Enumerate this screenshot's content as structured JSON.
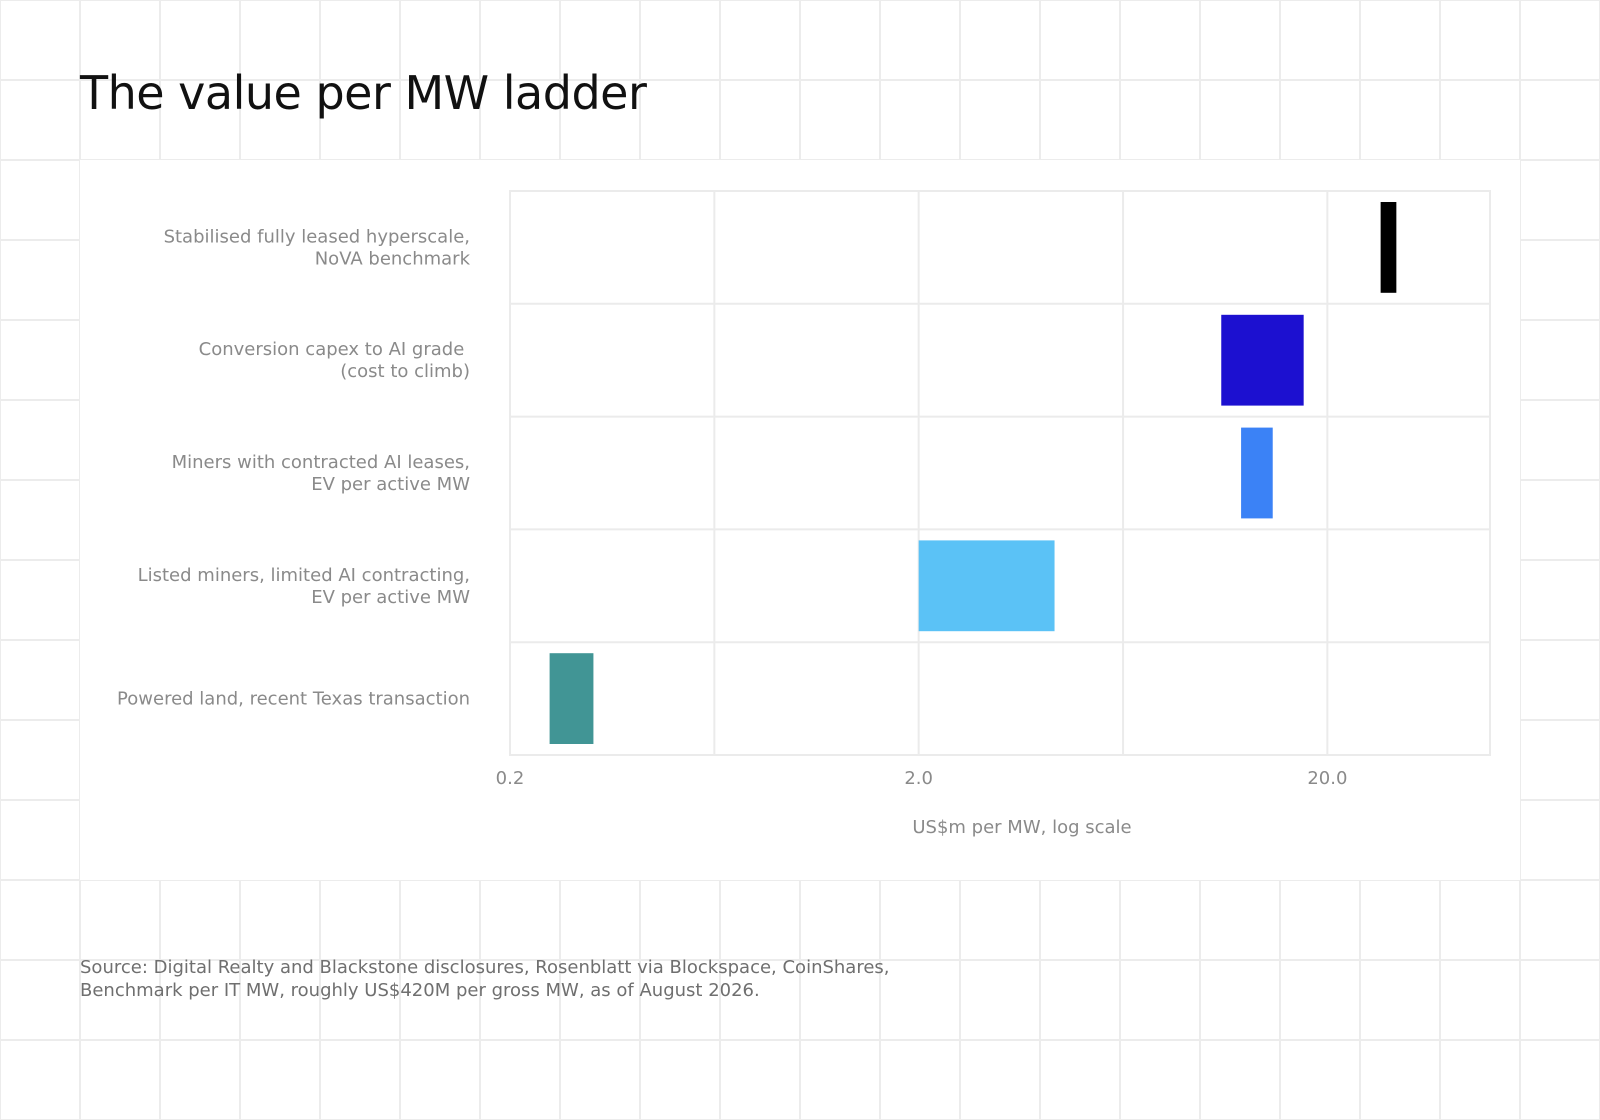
{
  "page": {
    "title": "The value per MW ladder",
    "source_note": "Source: Digital Realty and Blackstone disclosures, Rosenblatt via Blockspace, CoinShares, Benchmark per IT MW, roughly US$420M per gross MW, as of August 2026."
  },
  "chart_data": {
    "type": "bar",
    "orientation": "horizontal",
    "style": "floating range bars",
    "title": "The value per MW ladder",
    "xlabel": "US$m per MW, log scale",
    "ylabel": "",
    "x_scale": "log",
    "xlim": [
      0.2,
      50
    ],
    "x_ticks": [
      0.2,
      2.0,
      20.0
    ],
    "x_tick_labels": [
      "0.2",
      "2.0",
      "20.0"
    ],
    "grid": true,
    "legend": "none",
    "categories": [
      [
        "Stabilised fully leased hyperscale,",
        "NoVA benchmark"
      ],
      [
        "Conversion capex to AI grade ",
        "(cost to climb)"
      ],
      [
        "Miners with contracted AI leases,",
        "EV per active MW"
      ],
      [
        "Listed miners, limited AI contracting,",
        "EV per active MW"
      ],
      [
        "Powered land, recent Texas transaction"
      ]
    ],
    "ranges": [
      {
        "low": 27.0,
        "high": 29.5
      },
      {
        "low": 11.0,
        "high": 17.5
      },
      {
        "low": 12.3,
        "high": 14.7
      },
      {
        "low": 2.0,
        "high": 4.3
      },
      {
        "low": 0.25,
        "high": 0.32
      }
    ],
    "colors": [
      "#000000",
      "#1c10d0",
      "#3b82f6",
      "#5bc2f6",
      "#419595"
    ],
    "gridline_color": "#ebebeb",
    "label_color": "#8a8a8a"
  }
}
